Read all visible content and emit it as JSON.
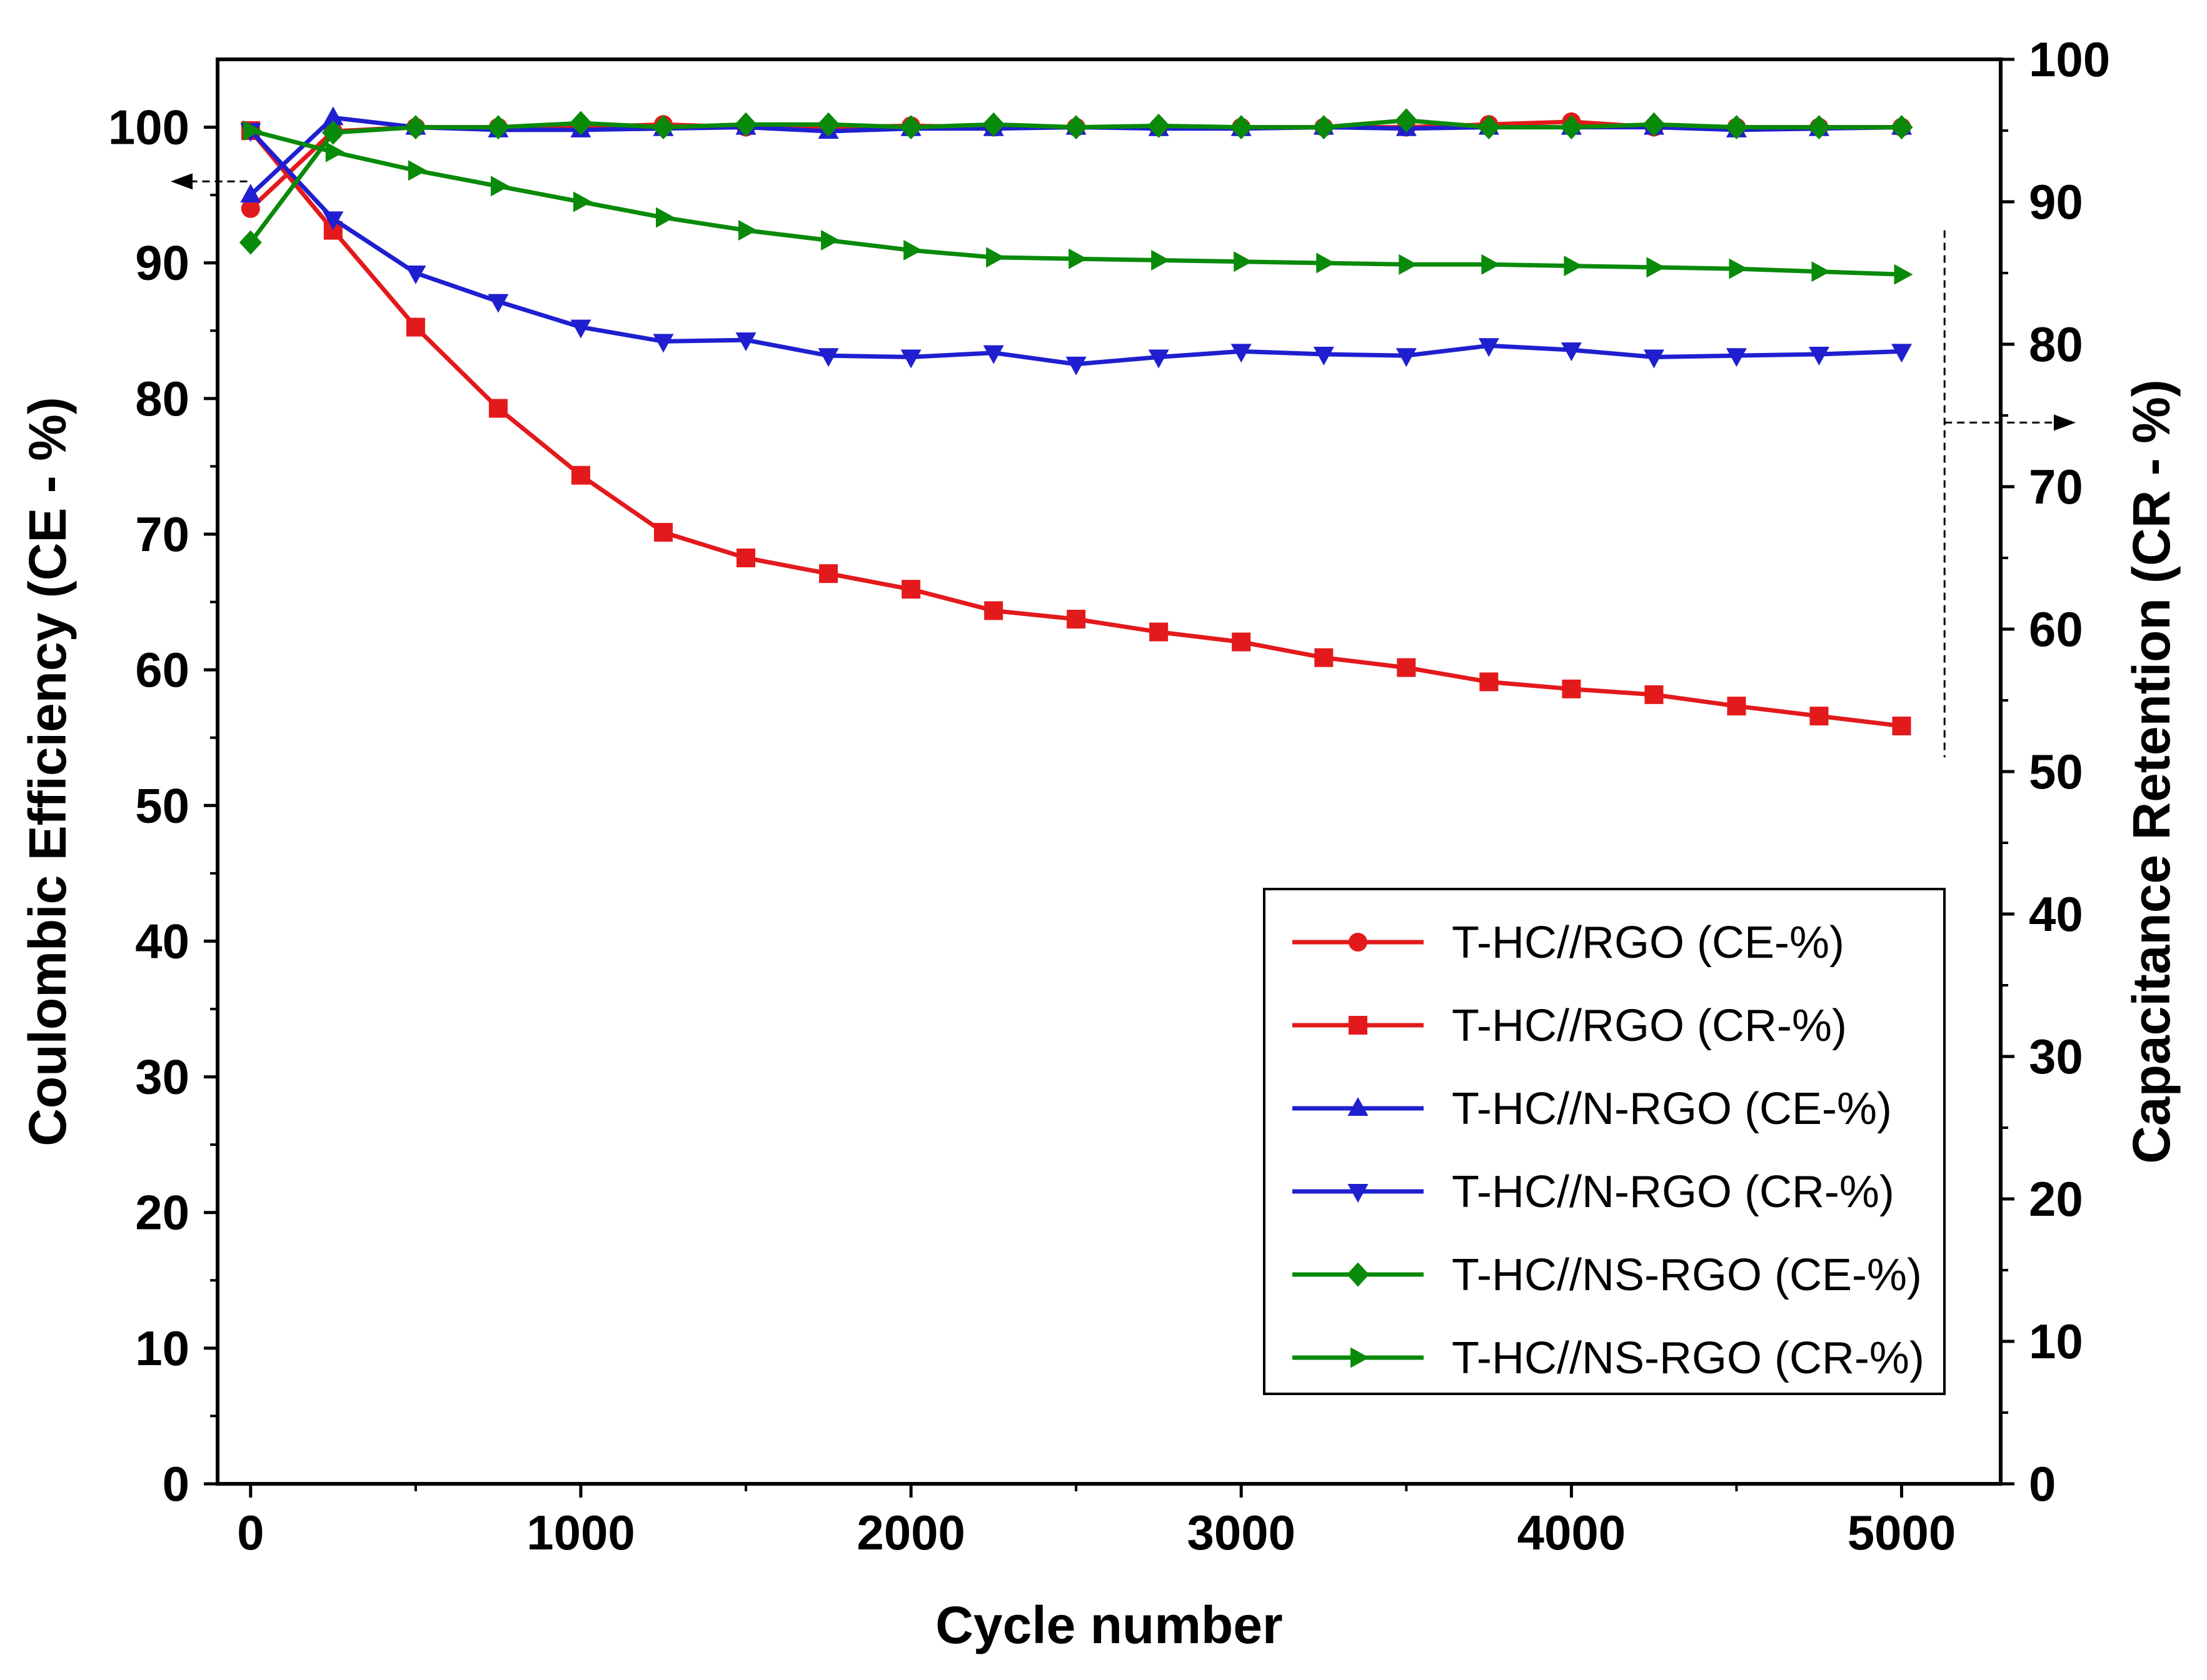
{
  "chart_data": {
    "type": "line",
    "xlabel": "Cycle number",
    "ylabel_left": "Coulombic Efficiency (CE - %)",
    "ylabel_right": "Capacitance Retention (CR - %)",
    "xlim": [
      -100,
      5300
    ],
    "ylim_left": [
      0,
      105
    ],
    "ylim_right": [
      0,
      100
    ],
    "x_ticks": [
      0,
      1000,
      2000,
      3000,
      4000,
      5000
    ],
    "x_tick_labels": [
      "0",
      "1000",
      "2000",
      "3000",
      "4000",
      "5000"
    ],
    "y_left_ticks": [
      0,
      10,
      20,
      30,
      40,
      50,
      60,
      70,
      80,
      90,
      100
    ],
    "y_left_tick_labels": [
      "0",
      "10",
      "20",
      "30",
      "40",
      "50",
      "60",
      "70",
      "80",
      "90",
      "100"
    ],
    "y_right_ticks": [
      0,
      10,
      20,
      30,
      40,
      50,
      60,
      70,
      80,
      90,
      100
    ],
    "y_right_tick_labels": [
      "0",
      "10",
      "20",
      "30",
      "40",
      "50",
      "60",
      "70",
      "80",
      "90",
      "100"
    ],
    "grid": false,
    "legend_position": "bottom-right",
    "x": [
      0,
      250,
      500,
      750,
      1000,
      1250,
      1500,
      1750,
      2000,
      2250,
      2500,
      2750,
      3000,
      3250,
      3500,
      3750,
      4000,
      4250,
      4500,
      4750,
      5000
    ],
    "series": [
      {
        "name": "T-HC//RGO (CE-%)",
        "axis": "left",
        "color": "#e31a1c",
        "marker": "circle",
        "values": [
          94.0,
          99.7,
          100.0,
          100.0,
          100.0,
          100.2,
          100.0,
          100.0,
          100.1,
          100.0,
          100.0,
          100.0,
          100.0,
          100.0,
          100.0,
          100.2,
          100.4,
          100.0,
          100.0,
          100.0,
          100.0
        ]
      },
      {
        "name": "T-HC//RGO (CR-%)",
        "axis": "right",
        "color": "#e31a1c",
        "marker": "square",
        "values": [
          95.0,
          88.0,
          81.2,
          75.5,
          70.8,
          66.8,
          65.0,
          63.9,
          62.8,
          61.3,
          60.7,
          59.8,
          59.1,
          58.0,
          57.3,
          56.3,
          55.8,
          55.4,
          54.6,
          53.9,
          53.2
        ]
      },
      {
        "name": "T-HC//N-RGO (CE-%)",
        "axis": "left",
        "color": "#1f1fd0",
        "marker": "triangle-up",
        "values": [
          95.0,
          100.7,
          100.0,
          99.8,
          99.8,
          99.9,
          100.0,
          99.7,
          99.9,
          99.9,
          100.0,
          99.9,
          99.9,
          100.0,
          99.9,
          100.0,
          100.0,
          100.0,
          99.8,
          99.9,
          100.0
        ]
      },
      {
        "name": "T-HC//N-RGO (CR-%)",
        "axis": "right",
        "color": "#1f1fd0",
        "marker": "triangle-down",
        "values": [
          95.0,
          88.8,
          85.0,
          83.0,
          81.2,
          80.2,
          80.3,
          79.2,
          79.1,
          79.4,
          78.6,
          79.1,
          79.5,
          79.3,
          79.2,
          79.9,
          79.6,
          79.1,
          79.2,
          79.3,
          79.5
        ]
      },
      {
        "name": "T-HC//NS-RGO (CE-%)",
        "axis": "left",
        "color": "#0a8a0a",
        "marker": "diamond",
        "values": [
          91.5,
          99.6,
          100.0,
          100.0,
          100.3,
          100.0,
          100.2,
          100.2,
          100.0,
          100.2,
          100.0,
          100.1,
          100.0,
          100.0,
          100.5,
          100.0,
          100.0,
          100.2,
          100.0,
          100.0,
          100.0
        ]
      },
      {
        "name": "T-HC//NS-RGO (CR-%)",
        "axis": "right",
        "color": "#0a8a0a",
        "marker": "triangle-right",
        "values": [
          95.0,
          93.5,
          92.2,
          91.1,
          90.0,
          88.9,
          88.0,
          87.3,
          86.6,
          86.1,
          86.0,
          85.9,
          85.8,
          85.7,
          85.6,
          85.6,
          85.5,
          85.4,
          85.3,
          85.1,
          84.9
        ]
      }
    ]
  }
}
